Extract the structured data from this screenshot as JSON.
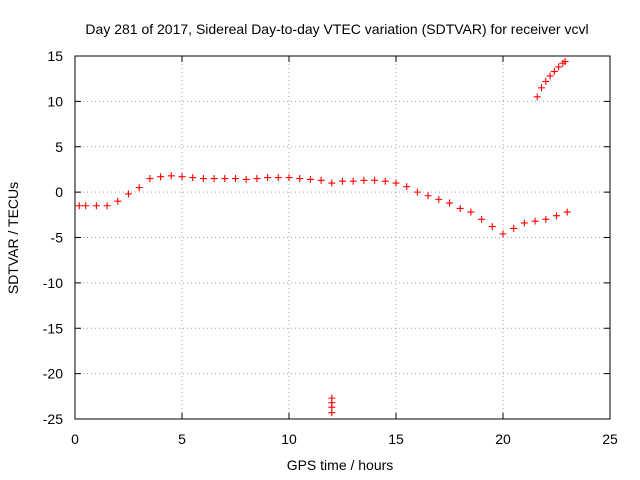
{
  "chart_data": {
    "type": "scatter",
    "title": "Day 281 of 2017, Sidereal Day-to-day VTEC variation (SDTVAR) for receiver vcvl",
    "xlabel": "GPS time / hours",
    "ylabel": "SDTVAR / TECUs",
    "xlim": [
      0,
      25
    ],
    "ylim": [
      -25,
      15
    ],
    "xticks": [
      0,
      5,
      10,
      15,
      20,
      25
    ],
    "xtick_labels": [
      "0",
      "5",
      "10",
      "15",
      "20",
      "25"
    ],
    "yticks": [
      15,
      10,
      5,
      0,
      -5,
      -10,
      -15,
      -20,
      -25
    ],
    "ytick_labels": [
      "15",
      "10",
      "5",
      "0",
      "-5",
      "-10",
      "-15",
      "-20",
      "-25"
    ],
    "grid": true,
    "marker": "plus",
    "color": "#ff0000",
    "series": [
      {
        "name": "main-trace",
        "x": [
          0.2,
          0.5,
          1.0,
          1.5,
          2.0,
          2.5,
          3.0,
          3.5,
          4.0,
          4.5,
          5.0,
          5.5,
          6.0,
          6.5,
          7.0,
          7.5,
          8.0,
          8.5,
          9.0,
          9.5,
          10.0,
          10.5,
          11.0,
          11.5,
          12.0,
          12.5,
          13.0,
          13.5,
          14.0,
          14.5,
          15.0,
          15.5,
          16.0,
          16.5,
          17.0,
          17.5,
          18.0,
          18.5,
          19.0,
          19.5,
          20.0,
          20.5,
          21.0,
          21.5,
          22.0,
          22.5,
          23.0
        ],
        "values": [
          -1.5,
          -1.5,
          -1.5,
          -1.5,
          -1.0,
          -0.2,
          0.5,
          1.5,
          1.7,
          1.8,
          1.7,
          1.6,
          1.5,
          1.5,
          1.5,
          1.5,
          1.4,
          1.5,
          1.6,
          1.6,
          1.6,
          1.5,
          1.4,
          1.3,
          1.0,
          1.2,
          1.2,
          1.3,
          1.3,
          1.2,
          1.0,
          0.6,
          0.0,
          -0.4,
          -0.8,
          -1.2,
          -1.8,
          -2.2,
          -3.0,
          -3.8,
          -4.6,
          -4.0,
          -3.4,
          -3.2,
          -3.0,
          -2.6,
          -2.2
        ]
      },
      {
        "name": "upper-branch",
        "x": [
          21.6,
          21.8,
          22.0,
          22.2,
          22.4,
          22.6,
          22.8,
          22.9
        ],
        "values": [
          10.5,
          11.5,
          12.2,
          12.8,
          13.3,
          13.8,
          14.2,
          14.4
        ]
      },
      {
        "name": "outliers",
        "x": [
          12.0,
          12.0,
          12.0,
          12.0
        ],
        "values": [
          -22.7,
          -23.2,
          -23.7,
          -24.3
        ]
      }
    ]
  }
}
